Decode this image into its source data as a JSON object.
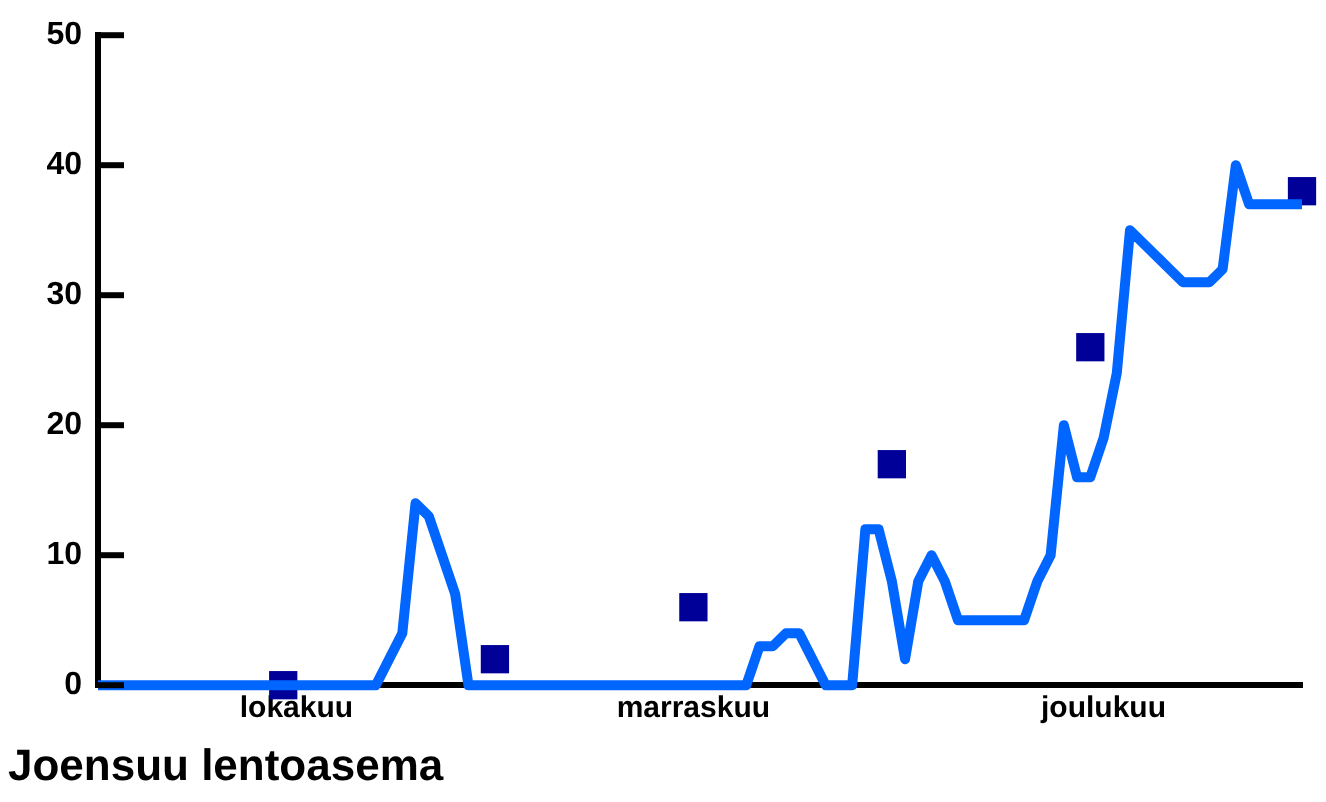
{
  "chart_data": {
    "type": "line",
    "title": "Joensuu lentoasema",
    "categories": [
      null,
      null,
      null,
      null,
      null,
      null,
      null,
      null,
      null,
      null,
      null,
      null,
      null,
      null,
      null,
      "lokakuu",
      null,
      null,
      null,
      null,
      null,
      null,
      null,
      null,
      null,
      null,
      null,
      null,
      null,
      null,
      null,
      null,
      null,
      null,
      null,
      null,
      null,
      null,
      null,
      null,
      null,
      null,
      null,
      null,
      null,
      "marraskuu",
      null,
      null,
      null,
      null,
      null,
      null,
      null,
      null,
      null,
      null,
      null,
      null,
      null,
      null,
      null,
      null,
      null,
      null,
      null,
      null,
      null,
      null,
      null,
      null,
      null,
      null,
      null,
      null,
      null,
      null,
      "joulukuu",
      null,
      null,
      null,
      null,
      null,
      null,
      null,
      null,
      null,
      null,
      null,
      null,
      null,
      null,
      null
    ],
    "ylim": [
      0,
      50
    ],
    "yticks": [
      0,
      10,
      20,
      30,
      40,
      50
    ],
    "grid": false,
    "legend": false,
    "series": [
      {
        "type": "line",
        "color": "#0066ff",
        "marker": "none",
        "values": [
          0,
          0,
          0,
          0,
          0,
          0,
          0,
          0,
          0,
          0,
          0,
          0,
          0,
          0,
          0,
          0,
          0,
          0,
          0,
          0,
          0,
          0,
          2,
          4,
          14,
          13,
          10,
          7,
          0,
          0,
          0,
          0,
          0,
          0,
          0,
          0,
          0,
          0,
          0,
          0,
          0,
          0,
          0,
          0,
          0,
          0,
          0,
          0,
          0,
          0,
          3,
          3,
          4,
          4,
          2,
          0,
          0,
          0,
          12,
          12,
          8,
          2,
          8,
          10,
          8,
          5,
          5,
          5,
          5,
          5,
          5,
          8,
          10,
          20,
          16,
          16,
          19,
          24,
          35,
          34,
          33,
          32,
          31,
          31,
          31,
          32,
          40,
          37,
          37,
          37,
          37,
          37
        ]
      },
      {
        "type": "scatter",
        "color": "#000099",
        "marker": "square",
        "values": [
          null,
          null,
          null,
          null,
          null,
          null,
          null,
          null,
          null,
          null,
          null,
          null,
          null,
          null,
          0,
          null,
          null,
          null,
          null,
          null,
          null,
          null,
          null,
          null,
          null,
          null,
          null,
          null,
          null,
          null,
          2,
          null,
          null,
          null,
          null,
          null,
          null,
          null,
          null,
          null,
          null,
          null,
          null,
          null,
          null,
          6,
          null,
          null,
          null,
          null,
          null,
          null,
          null,
          null,
          null,
          null,
          null,
          null,
          null,
          null,
          17,
          null,
          null,
          null,
          null,
          null,
          null,
          null,
          null,
          null,
          null,
          null,
          null,
          null,
          null,
          26,
          null,
          null,
          null,
          null,
          null,
          null,
          null,
          null,
          null,
          null,
          null,
          null,
          null,
          null,
          null,
          38
        ]
      }
    ]
  }
}
